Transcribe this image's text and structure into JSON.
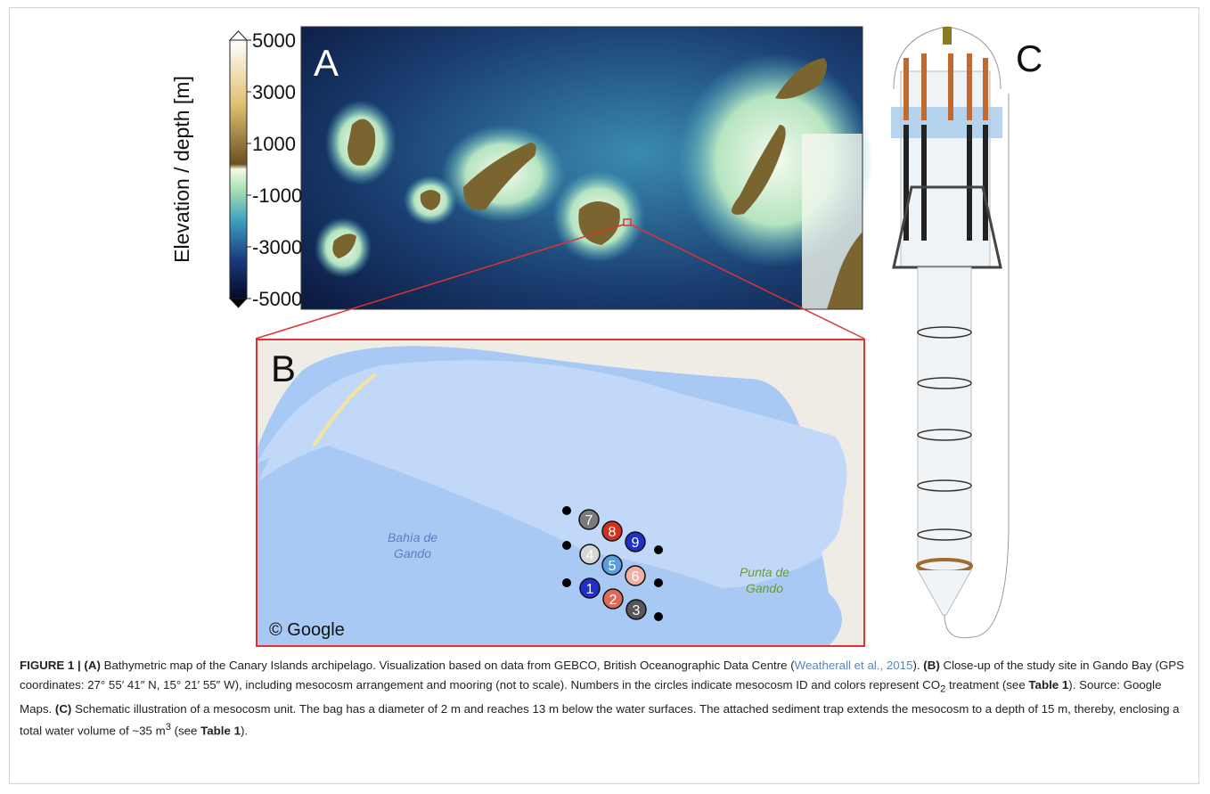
{
  "panels": {
    "a": {
      "label": "A",
      "colorbar": {
        "title": "Elevation / depth [m]",
        "lim": [
          -5000,
          5000
        ],
        "ticks": [
          5000,
          3000,
          1000,
          -1000,
          -3000,
          -5000
        ]
      }
    },
    "b": {
      "label": "B",
      "credit": "© Google",
      "places": [
        {
          "lines": [
            "Bahía de",
            "Gando"
          ],
          "color": "#5b7fc0"
        },
        {
          "lines": [
            "Punta de",
            "Gando"
          ],
          "color": "#6a9a3a"
        }
      ],
      "mesocosms": [
        {
          "id": "7",
          "color": "#7a7a7a"
        },
        {
          "id": "8",
          "color": "#d0321f"
        },
        {
          "id": "9",
          "color": "#1f2fc8"
        },
        {
          "id": "4",
          "color": "#d6d6d6"
        },
        {
          "id": "5",
          "color": "#5b9ee0"
        },
        {
          "id": "6",
          "color": "#efb0a6"
        },
        {
          "id": "1",
          "color": "#1f2fc8"
        },
        {
          "id": "2",
          "color": "#e06a5a"
        },
        {
          "id": "3",
          "color": "#575757"
        }
      ]
    },
    "c": {
      "label": "C"
    }
  },
  "caption": {
    "segments": [
      {
        "text": "FIGURE 1 | (A)",
        "style": "bold"
      },
      {
        "text": " Bathymetric map of the Canary Islands archipelago. Visualization based on data from GEBCO, British Oceanographic Data Centre (",
        "style": "plain"
      },
      {
        "text": "Weatherall et al., 2015",
        "style": "link"
      },
      {
        "text": "). ",
        "style": "plain"
      },
      {
        "text": "(B)",
        "style": "bold"
      },
      {
        "text": " Close-up of the study site in Gando Bay (GPS coordinates: 27° 55′ 41″ N, 15° 21′ 55″ W), including mesocosm arrangement and mooring (not to scale). Numbers in the circles indicate mesocosm ID and colors represent CO",
        "style": "plain"
      },
      {
        "text": "2",
        "style": "sub"
      },
      {
        "text": " treatment (see ",
        "style": "plain"
      },
      {
        "text": "Table 1",
        "style": "bold"
      },
      {
        "text": "). Source: Google Maps. ",
        "style": "plain"
      },
      {
        "text": "(C)",
        "style": "bold"
      },
      {
        "text": " Schematic illustration of a mesocosm unit. The bag has a diameter of 2 m and reaches 13 m below the water surfaces. The attached sediment trap extends the mesocosm to a depth of 15 m, thereby, enclosing a total water volume of ~35 m",
        "style": "plain"
      },
      {
        "text": "3",
        "style": "sup"
      },
      {
        "text": " (see ",
        "style": "plain"
      },
      {
        "text": "Table 1",
        "style": "bold"
      },
      {
        "text": ").",
        "style": "plain"
      }
    ]
  }
}
